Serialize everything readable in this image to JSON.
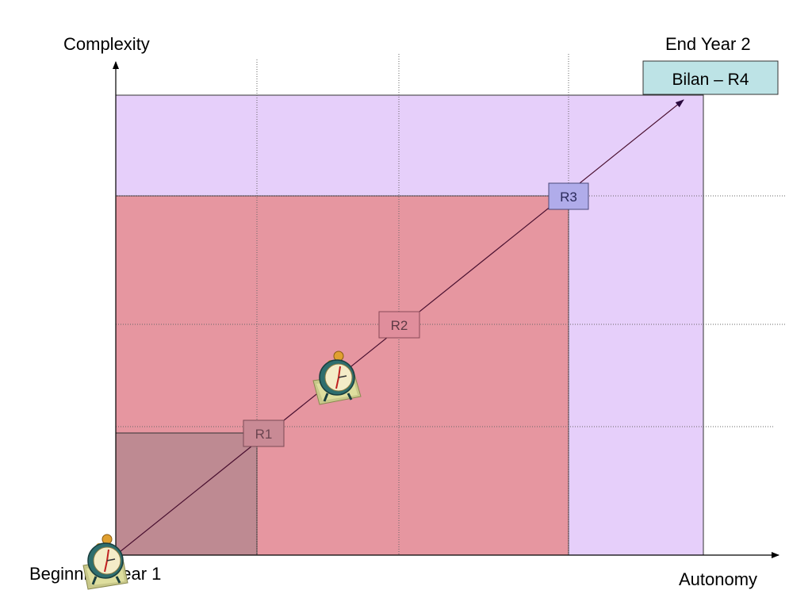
{
  "axes": {
    "y_label": "Complexity",
    "x_label": "Autonomy"
  },
  "start_label": "Beginning Year 1",
  "end_label": "End Year 2",
  "bilan": {
    "label": "Bilan – R4",
    "fill": "#bde3e6"
  },
  "milestones": [
    {
      "label": "R1"
    },
    {
      "label": "R2"
    },
    {
      "label": "R3"
    }
  ],
  "regions": {
    "outer_fill": "#e6cffa",
    "mid_fill": "#e696a0",
    "inner_fill": "#be8a92"
  },
  "icons": [
    "alarm-clock-icon",
    "alarm-clock-icon"
  ]
}
